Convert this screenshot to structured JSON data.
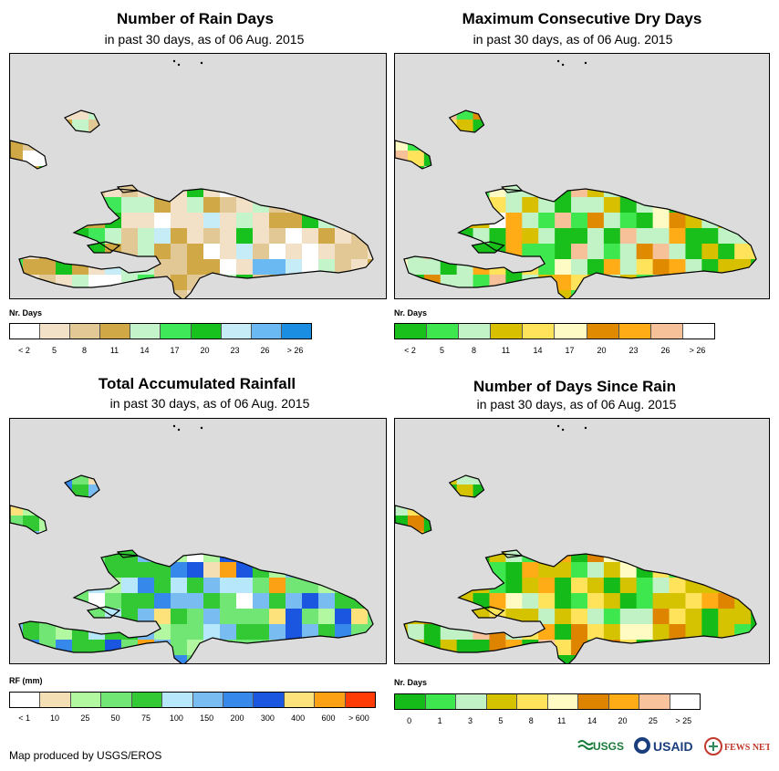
{
  "panels": [
    {
      "title": "Number of Rain Days",
      "subtitle": "in past 30 days, as of 06 Aug. 2015",
      "legend_title": "Nr. Days",
      "legend_colors": [
        "#ffffff",
        "#f3e1c7",
        "#e2c895",
        "#d0a846",
        "#c4f4c9",
        "#3fe859",
        "#18c21e",
        "#c6ecf7",
        "#6bb9f2",
        "#1c8ee1"
      ],
      "legend_labels": [
        "< 2",
        "5",
        "8",
        "11",
        "14",
        "17",
        "20",
        "23",
        "26",
        "> 26"
      ]
    },
    {
      "title": "Maximum Consecutive Dry Days",
      "subtitle": "in past 30 days, as of 06 Aug. 2015",
      "legend_title": "Nr. Days",
      "legend_colors": [
        "#19c01b",
        "#3fe74f",
        "#c1f3c6",
        "#d8c000",
        "#ffe35a",
        "#fffbc4",
        "#e08a00",
        "#ffac16",
        "#f6c199",
        "#ffffff"
      ],
      "legend_labels": [
        "< 2",
        "5",
        "8",
        "11",
        "14",
        "17",
        "20",
        "23",
        "26",
        "> 26"
      ]
    },
    {
      "title": "Total Accumulated Rainfall",
      "subtitle": "in past 30 days, as of 06 Aug. 2015",
      "legend_title": "RF (mm)",
      "legend_colors": [
        "#ffffff",
        "#f3dfb3",
        "#b1f8a1",
        "#71e675",
        "#33c934",
        "#b6e7fa",
        "#78bcf1",
        "#3788eb",
        "#1b56e0",
        "#fde27b",
        "#fda114",
        "#ff3c06"
      ],
      "legend_labels": [
        "< 1",
        "10",
        "25",
        "50",
        "75",
        "100",
        "150",
        "200",
        "300",
        "400",
        "600",
        "> 600"
      ]
    },
    {
      "title": "Number of Days Since Rain",
      "subtitle": "in past 30 days, as of 06 Aug. 2015",
      "legend_title": "Nr. Days",
      "legend_colors": [
        "#15bb18",
        "#3fe74f",
        "#c1f2c6",
        "#d5c200",
        "#ffe35a",
        "#fffbc3",
        "#df8400",
        "#ffac16",
        "#f8c39c",
        "#ffffff"
      ],
      "legend_labels": [
        "0",
        "1",
        "3",
        "5",
        "8",
        "11",
        "14",
        "20",
        "25",
        "> 25"
      ]
    }
  ],
  "footer": "Map produced by USGS/EROS",
  "logos": {
    "usgs": "USGS",
    "usaid": "USAID",
    "fews": "FEWS NET"
  }
}
